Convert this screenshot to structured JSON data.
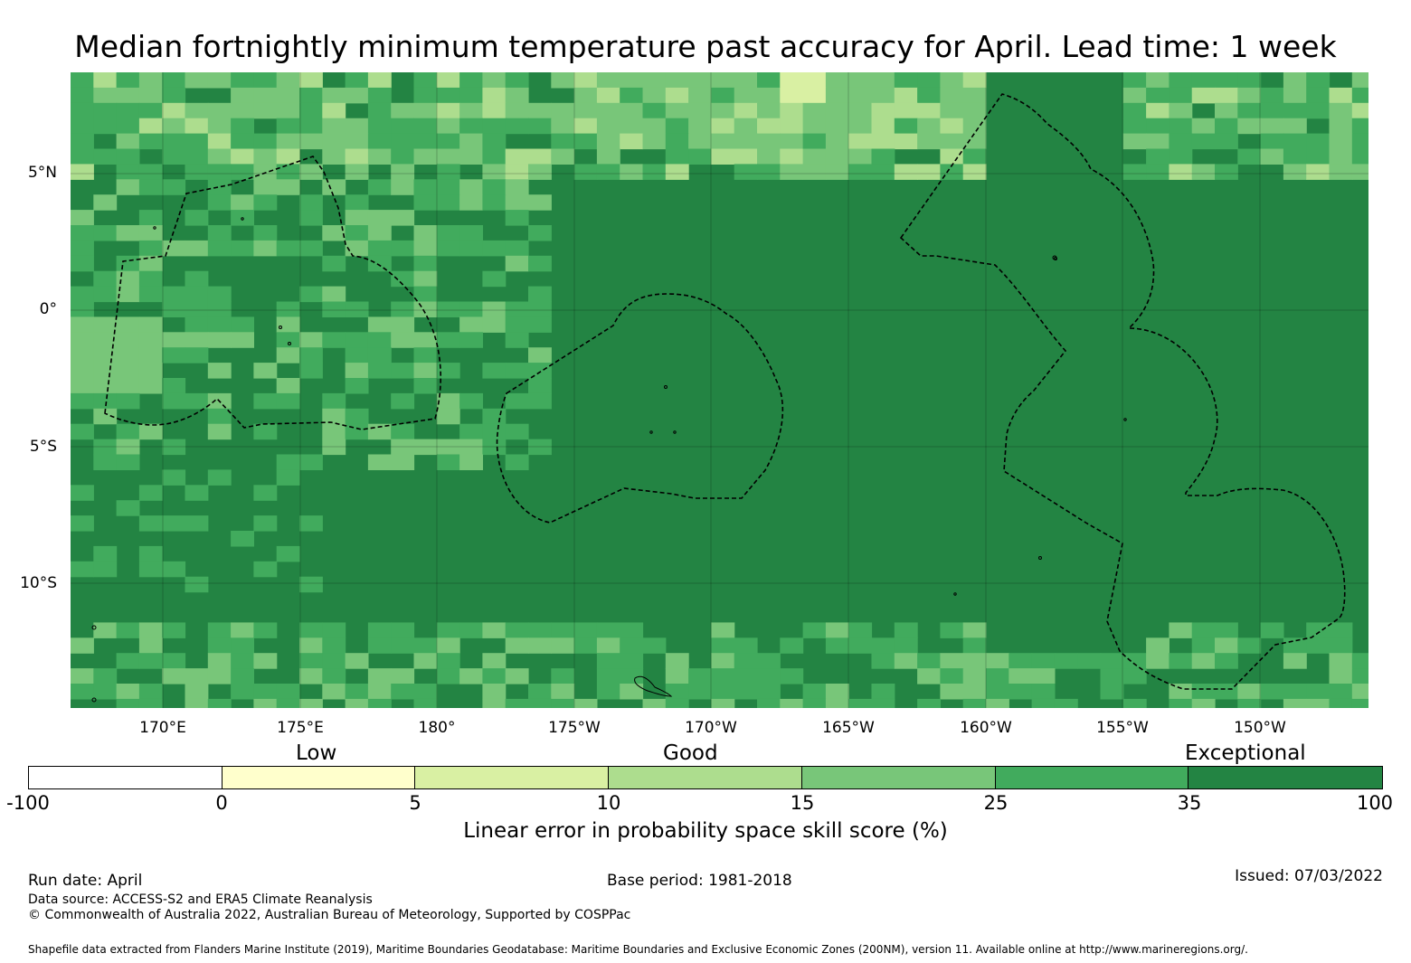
{
  "title": "Median fortnightly minimum temperature past accuracy for April. Lead time: 1 week",
  "map": {
    "lat_labels": [
      "5°N",
      "0°",
      "5°S",
      "10°S"
    ],
    "lon_labels": [
      "170°E",
      "175°E",
      "180°",
      "175°W",
      "170°W",
      "165°W",
      "160°W",
      "155°W",
      "150°W"
    ],
    "base_color": "#238443",
    "has_eez_boundaries": true
  },
  "legend": {
    "categories": [
      "Low",
      "Good",
      "Exceptional"
    ],
    "ticks": [
      "-100",
      "0",
      "5",
      "10",
      "15",
      "25",
      "35",
      "100"
    ],
    "colors": [
      "#ffffff",
      "#ffffcc",
      "#d9f0a3",
      "#addd8e",
      "#78c679",
      "#41ab5d",
      "#238443"
    ],
    "title": "Linear error in probability space skill score (%)"
  },
  "footer": {
    "run_date": "Run date: April",
    "base_period": "Base period: 1981-2018",
    "issued": "Issued: 07/03/2022",
    "data_source": "Data source: ACCESS-S2 and ERA5 Climate Reanalysis",
    "copyright": "© Commonwealth of Australia 2022, Australian Bureau of Meteorology, Supported by COSPPac",
    "shapefile": "Shapefile data extracted from Flanders Marine Institute (2019), Maritime Boundaries Geodatabase: Maritime Boundaries and Exclusive Economic Zones (200NM), version 11. Available online at http://www.marineregions.org/."
  }
}
